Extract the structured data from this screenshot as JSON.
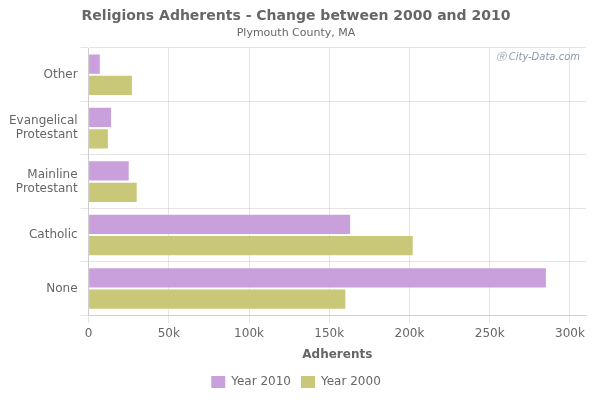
{
  "chart_data": {
    "type": "bar",
    "orientation": "horizontal",
    "title": "Religions Adherents - Change between 2000 and 2010",
    "subtitle": "Plymouth County, MA",
    "xlabel": "Adherents",
    "categories": [
      "None",
      "Catholic",
      "Mainline\nProtestant",
      "Evangelical\nProtestant",
      "Other"
    ],
    "series": [
      {
        "name": "Year 2010",
        "color": "#c9a0dc",
        "values": [
          285000,
          163000,
          25000,
          14000,
          7000
        ]
      },
      {
        "name": "Year 2000",
        "color": "#c8c878",
        "values": [
          160000,
          202000,
          30000,
          12000,
          27000
        ]
      }
    ],
    "xlim": [
      0,
      310000
    ],
    "xticks": [
      0,
      {
        "value": 50000,
        "label": "50k"
      },
      {
        "value": 100000,
        "label": "100k"
      },
      {
        "value": 150000,
        "label": "150k"
      },
      {
        "value": 200000,
        "label": "200k"
      },
      {
        "value": 250000,
        "label": "250k"
      },
      {
        "value": 300000,
        "label": "300k"
      }
    ],
    "grid": true,
    "legend": "bottom",
    "annotations": [
      "Ⓡ City-Data.com"
    ]
  }
}
